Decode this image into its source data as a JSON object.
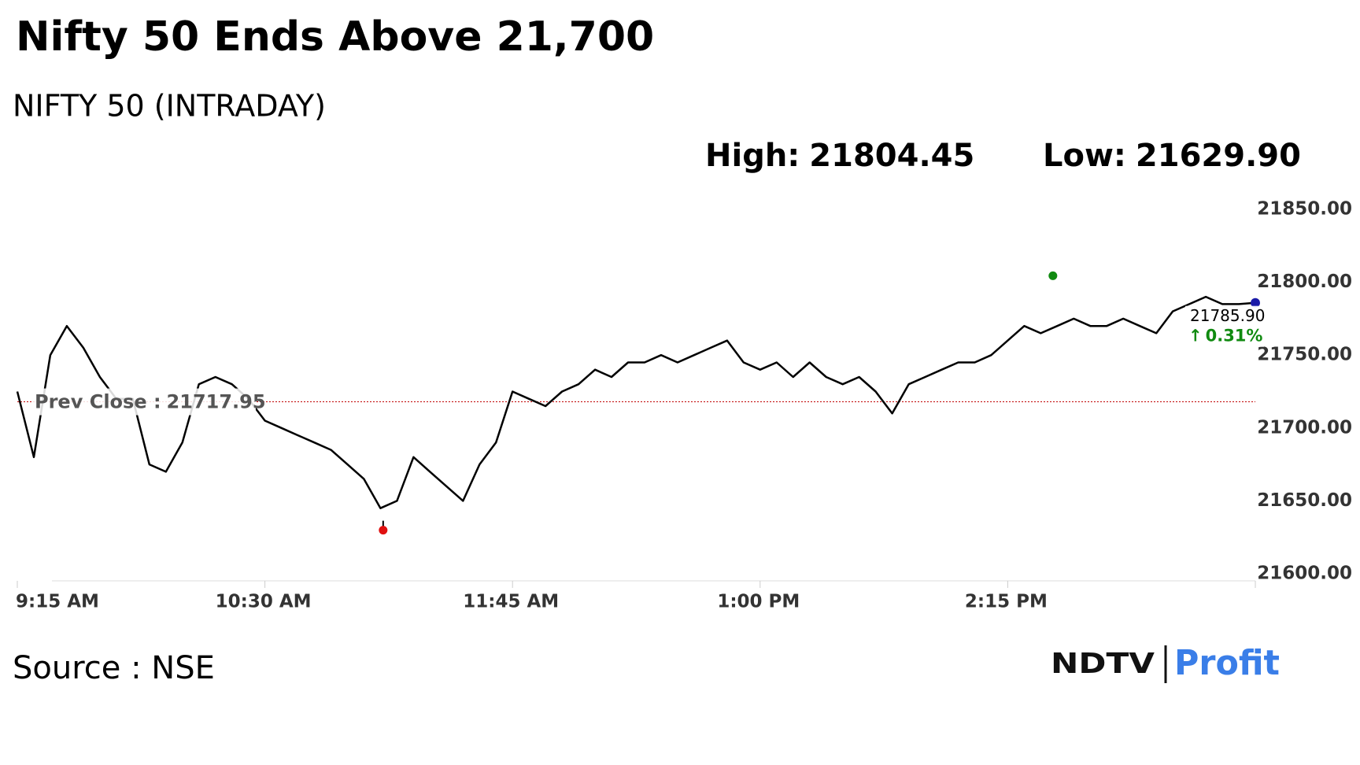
{
  "chart_data": {
    "type": "line",
    "title": "Nifty 50 Ends Above 21,700",
    "subtitle": "NIFTY 50 (INTRADAY)",
    "high": {
      "label": "High:",
      "value": 21804.45,
      "value_label": "21804.45"
    },
    "low": {
      "label": "Low:",
      "value": 21629.9,
      "value_label": "21629.90"
    },
    "prev_close": {
      "label": "Prev Close :",
      "value": 21717.95
    },
    "last": {
      "value": 21785.9,
      "value_label": "21785.90"
    },
    "change": {
      "value": 0.31,
      "value_label": "0.31%"
    },
    "source": "Source : NSE",
    "logo": [
      "NDTV",
      "Profit"
    ],
    "categories": [
      "9:15 AM",
      null,
      null,
      null,
      null,
      null,
      null,
      null,
      null,
      null,
      null,
      null,
      null,
      null,
      null,
      "10:30 AM",
      null,
      null,
      null,
      null,
      null,
      null,
      null,
      null,
      null,
      null,
      null,
      null,
      null,
      null,
      "11:45 AM",
      null,
      null,
      null,
      null,
      null,
      null,
      null,
      null,
      null,
      null,
      null,
      null,
      null,
      null,
      "1:00 PM",
      null,
      null,
      null,
      null,
      null,
      null,
      null,
      null,
      null,
      null,
      null,
      null,
      null,
      null,
      "2:15 PM",
      null,
      null,
      null,
      null,
      null,
      null,
      null,
      null,
      null,
      null,
      null,
      null,
      null,
      null,
      null
    ],
    "series": [
      {
        "name": "NIFTY 50",
        "color": "#000000",
        "values": [
          21725,
          21680,
          21750,
          21770,
          21755,
          21735,
          21720,
          21720,
          21675,
          21670,
          21690,
          21730,
          21735,
          21730,
          21720,
          21705,
          21700,
          21695,
          21690,
          21685,
          21675,
          21665,
          21645,
          21650,
          21680,
          21670,
          21660,
          21650,
          21675,
          21690,
          21725,
          21720,
          21715,
          21725,
          21730,
          21740,
          21735,
          21745,
          21745,
          21750,
          21745,
          21750,
          21755,
          21760,
          21745,
          21740,
          21745,
          21735,
          21745,
          21735,
          21730,
          21735,
          21725,
          21710,
          21730,
          21735,
          21740,
          21745,
          21745,
          21750,
          21760,
          21770,
          21765,
          21770,
          21775,
          21770,
          21770,
          21775,
          21770,
          21765,
          21780,
          21785,
          21790,
          21785,
          21785,
          21785.9
        ]
      }
    ],
    "ylim": [
      21600,
      21850
    ],
    "yticks": [
      {
        "value": 21600,
        "label": "21600.00"
      },
      {
        "value": 21650,
        "label": "21650.00"
      },
      {
        "value": 21700,
        "label": "21700.00"
      },
      {
        "value": 21750,
        "label": "21750.00"
      },
      {
        "value": 21800,
        "label": "21800.00"
      },
      {
        "value": 21850,
        "label": "21850.00"
      }
    ],
    "high_color": "#108a10",
    "low_color": "#e01010",
    "last_color": "#1a1aa8",
    "prev_close_color": "#c00000",
    "change_color": "#108a10"
  }
}
